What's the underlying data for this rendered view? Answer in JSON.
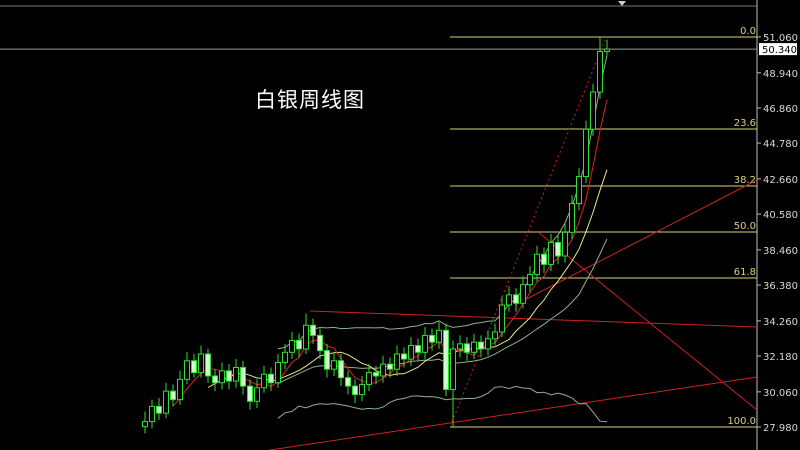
{
  "chart_data": {
    "type": "candlestick",
    "title": "白银周线图",
    "ylim": [
      27.0,
      52.2
    ],
    "y_ticks": [
      "51.060",
      "48.940",
      "46.860",
      "44.780",
      "42.660",
      "40.580",
      "38.460",
      "36.380",
      "34.260",
      "32.180",
      "30.060",
      "27.980"
    ],
    "current_price": "50.340",
    "grid": false,
    "colors": {
      "background": "#000000",
      "candle": "#33dd33",
      "candle_down_fill": "#ccffcc",
      "fib": "#d8d080",
      "trendline": "#cc2222",
      "ma_fast": "#dd2222",
      "ma_slow": "#e8e890",
      "bands": "#8fb08f",
      "price_line": "#9a9a9a"
    },
    "fibonacci": {
      "high": 51.06,
      "low": 27.98,
      "levels": [
        {
          "label": "0.0",
          "ratio": 0.0
        },
        {
          "label": "23.6",
          "ratio": 0.236
        },
        {
          "label": "38.2",
          "ratio": 0.382
        },
        {
          "label": "50.0",
          "ratio": 0.5
        },
        {
          "label": "61.8",
          "ratio": 0.618
        },
        {
          "label": "100.0",
          "ratio": 1.0
        }
      ]
    },
    "candles_ohlc": [
      [
        28.0,
        28.9,
        27.6,
        28.3
      ],
      [
        28.3,
        29.6,
        27.9,
        29.2
      ],
      [
        29.2,
        29.7,
        28.4,
        28.8
      ],
      [
        28.8,
        30.6,
        28.5,
        30.1
      ],
      [
        30.1,
        30.5,
        29.2,
        29.6
      ],
      [
        29.6,
        31.3,
        29.3,
        30.8
      ],
      [
        30.8,
        32.4,
        30.5,
        31.9
      ],
      [
        31.9,
        32.3,
        30.9,
        31.2
      ],
      [
        31.2,
        32.8,
        30.9,
        32.3
      ],
      [
        32.3,
        32.6,
        30.6,
        31.0
      ],
      [
        31.0,
        31.4,
        30.1,
        30.6
      ],
      [
        30.6,
        31.8,
        30.2,
        31.3
      ],
      [
        31.3,
        31.7,
        30.2,
        30.7
      ],
      [
        30.7,
        32.0,
        30.3,
        31.5
      ],
      [
        31.5,
        31.9,
        29.9,
        30.4
      ],
      [
        30.4,
        30.8,
        29.0,
        29.5
      ],
      [
        29.5,
        30.8,
        29.1,
        30.3
      ],
      [
        30.3,
        31.6,
        30.0,
        31.1
      ],
      [
        31.1,
        31.5,
        30.1,
        30.6
      ],
      [
        30.6,
        32.3,
        30.3,
        31.8
      ],
      [
        31.8,
        32.9,
        31.4,
        32.4
      ],
      [
        32.4,
        33.6,
        32.0,
        33.1
      ],
      [
        33.1,
        33.5,
        32.1,
        32.6
      ],
      [
        32.6,
        34.7,
        32.3,
        34.0
      ],
      [
        34.0,
        34.4,
        32.9,
        33.4
      ],
      [
        33.4,
        33.8,
        32.0,
        32.5
      ],
      [
        32.5,
        32.9,
        30.9,
        31.4
      ],
      [
        31.4,
        32.4,
        31.0,
        31.9
      ],
      [
        31.9,
        32.3,
        30.4,
        30.9
      ],
      [
        30.9,
        31.3,
        29.9,
        30.4
      ],
      [
        30.4,
        30.8,
        29.4,
        29.9
      ],
      [
        29.9,
        31.0,
        29.5,
        30.5
      ],
      [
        30.5,
        31.7,
        30.1,
        31.2
      ],
      [
        31.2,
        31.6,
        30.5,
        31.0
      ],
      [
        31.0,
        32.2,
        30.6,
        31.7
      ],
      [
        31.7,
        32.1,
        30.9,
        31.4
      ],
      [
        31.4,
        32.8,
        31.0,
        32.3
      ],
      [
        32.3,
        32.7,
        31.5,
        32.0
      ],
      [
        32.0,
        33.3,
        31.6,
        32.8
      ],
      [
        32.8,
        33.2,
        31.9,
        32.4
      ],
      [
        32.4,
        33.9,
        32.0,
        33.4
      ],
      [
        33.4,
        33.8,
        32.5,
        33.0
      ],
      [
        33.0,
        34.2,
        32.6,
        33.7
      ],
      [
        33.7,
        34.1,
        29.8,
        30.2
      ],
      [
        30.2,
        33.1,
        28.0,
        32.6
      ],
      [
        32.6,
        33.4,
        32.1,
        32.9
      ],
      [
        32.9,
        33.3,
        31.9,
        32.4
      ],
      [
        32.4,
        33.5,
        32.0,
        33.0
      ],
      [
        33.0,
        33.4,
        32.1,
        32.6
      ],
      [
        32.6,
        33.7,
        32.2,
        33.2
      ],
      [
        33.2,
        34.1,
        32.8,
        33.6
      ],
      [
        33.6,
        35.7,
        33.3,
        35.2
      ],
      [
        35.2,
        36.3,
        34.8,
        35.8
      ],
      [
        35.8,
        36.2,
        34.8,
        35.3
      ],
      [
        35.3,
        36.9,
        35.0,
        36.4
      ],
      [
        36.4,
        37.5,
        36.0,
        37.0
      ],
      [
        37.0,
        38.7,
        36.6,
        38.2
      ],
      [
        38.2,
        38.6,
        37.1,
        37.6
      ],
      [
        37.6,
        39.4,
        37.2,
        38.9
      ],
      [
        38.9,
        39.3,
        37.6,
        38.1
      ],
      [
        38.1,
        40.0,
        37.7,
        39.5
      ],
      [
        39.5,
        41.7,
        39.1,
        41.2
      ],
      [
        41.2,
        43.3,
        40.8,
        42.8
      ],
      [
        42.8,
        46.1,
        42.4,
        45.6
      ],
      [
        45.6,
        48.3,
        45.2,
        47.8
      ],
      [
        47.8,
        51.06,
        47.4,
        50.2
      ],
      [
        50.2,
        50.9,
        49.9,
        50.34
      ]
    ],
    "indicators": {
      "ma_fast_period": 5,
      "ma_slow_period": 10,
      "bands_period": 20,
      "bands_dev": 2
    }
  }
}
